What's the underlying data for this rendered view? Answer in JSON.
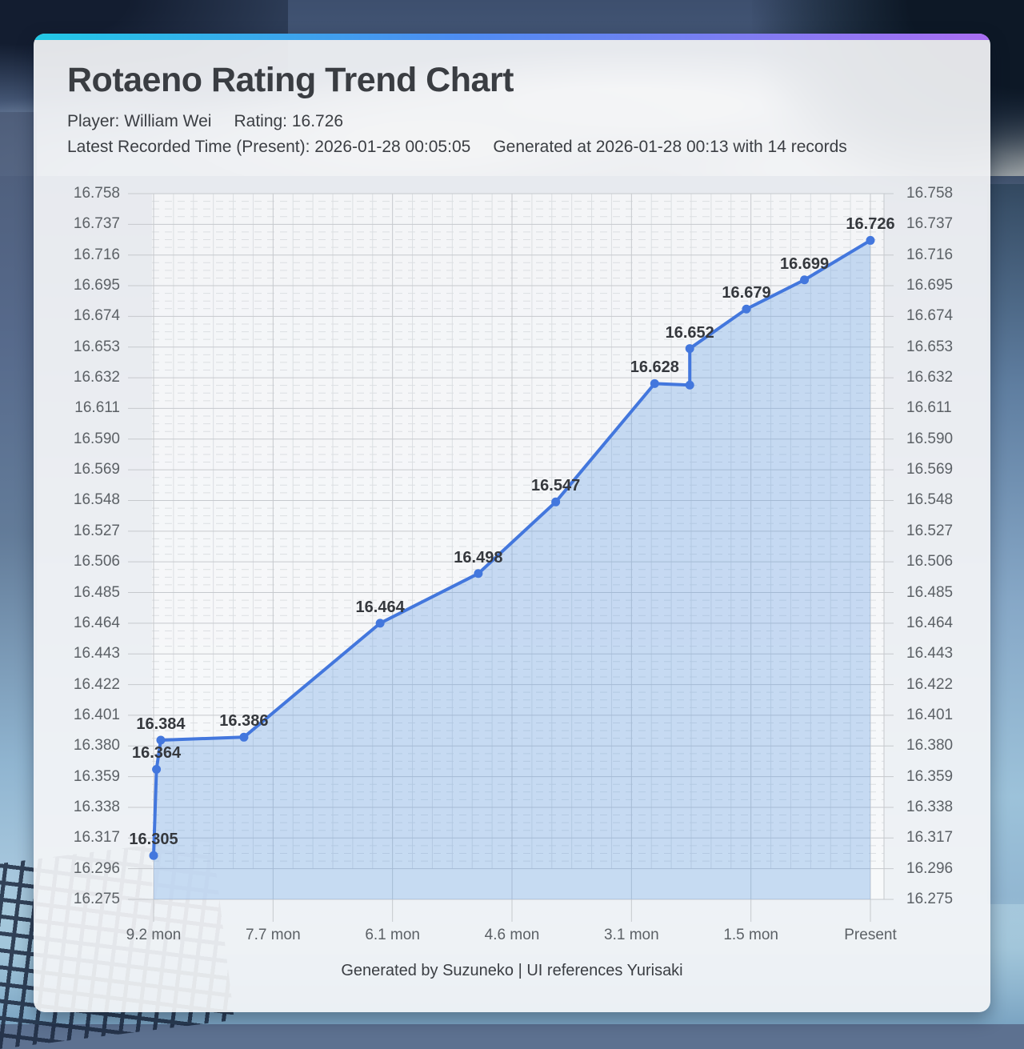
{
  "header": {
    "title": "Rotaeno Rating Trend Chart",
    "player": "Player: William Wei",
    "rating": "Rating: 16.726",
    "latest_time": "Latest Recorded Time (Present): 2026-01-28 00:05:05",
    "generated": "Generated at 2026-01-28 00:13 with 14 records"
  },
  "footer": {
    "credit": "Generated by Suzuneko | UI references Yurisaki"
  },
  "colors": {
    "accent_gradient": [
      "#22c8e6",
      "#4e8cf0",
      "#a96ef2"
    ],
    "line": "#4377dd",
    "marker": "#4377dd",
    "area_fill": "rgba(96,156,228,0.32)",
    "plot_background": "rgba(255,255,255,0.5)",
    "grid_major": "#c6c9cd",
    "grid_minor": "#dcdfe2",
    "axis_text": "#5c6166",
    "label_text": "#35383d"
  },
  "chart_data": {
    "type": "line",
    "title": "Rotaeno Rating Trend Chart",
    "records_total": 14,
    "x_ticks": [
      "9.2 mon",
      "7.7 mon",
      "6.1 mon",
      "4.6 mon",
      "3.1 mon",
      "1.5 mon",
      "Present"
    ],
    "y_ticks": [
      "16.275",
      "16.296",
      "16.317",
      "16.338",
      "16.359",
      "16.380",
      "16.401",
      "16.422",
      "16.443",
      "16.464",
      "16.485",
      "16.506",
      "16.527",
      "16.548",
      "16.569",
      "16.590",
      "16.611",
      "16.632",
      "16.653",
      "16.674",
      "16.695",
      "16.716",
      "16.737",
      "16.758"
    ],
    "ylim": [
      16.275,
      16.758
    ],
    "y_step": 0.021,
    "grid": true,
    "area_filled": true,
    "y_axis_sides": "both",
    "points": [
      {
        "t": 0.0,
        "value": 16.305,
        "label": "16.305"
      },
      {
        "t": 0.004,
        "value": 16.364,
        "label": "16.364"
      },
      {
        "t": 0.01,
        "value": 16.384,
        "label": "16.384"
      },
      {
        "t": 0.126,
        "value": 16.386,
        "label": "16.386"
      },
      {
        "t": 0.316,
        "value": 16.464,
        "label": "16.464"
      },
      {
        "t": 0.453,
        "value": 16.498,
        "label": "16.498"
      },
      {
        "t": 0.561,
        "value": 16.547,
        "label": "16.547"
      },
      {
        "t": 0.699,
        "value": 16.628,
        "label": "16.628"
      },
      {
        "t": 0.748,
        "value": 16.627,
        "label": ""
      },
      {
        "t": 0.748,
        "value": 16.652,
        "label": "16.652"
      },
      {
        "t": 0.827,
        "value": 16.679,
        "label": "16.679"
      },
      {
        "t": 0.908,
        "value": 16.699,
        "label": "16.699"
      },
      {
        "t": 1.0,
        "value": 16.726,
        "label": "16.726"
      }
    ]
  }
}
